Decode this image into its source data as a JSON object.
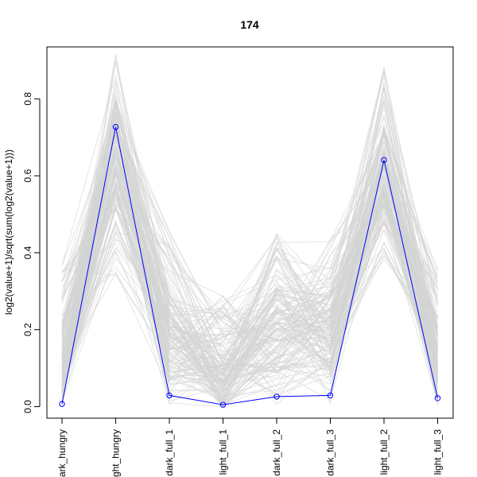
{
  "chart_data": {
    "type": "line",
    "title": "174",
    "ylabel": "log2(value+1)/sqrt(sum(log2(value+1)))",
    "xlabel": "",
    "categories": [
      "dark_hungry",
      "light_hungry",
      "dark_full_1",
      "light_full_1",
      "dark_full_2",
      "dark_full_3",
      "light_full_2",
      "light_full_3"
    ],
    "category_labels_visible": [
      "ark_hungry",
      "ight_hungry",
      "dark_full_1",
      "light_full_1",
      "dark_full_2",
      "dark_full_3",
      "light_full_2",
      "light_full_3"
    ],
    "ylim": [
      -0.03,
      0.935
    ],
    "yticks": [
      0.0,
      0.2,
      0.4,
      0.6,
      0.8
    ],
    "ytick_labels": [
      "0.0",
      "0.2",
      "0.4",
      "0.6",
      "0.8"
    ],
    "grid": false,
    "legend": "none",
    "highlight_series": {
      "values": [
        0.007,
        0.727,
        0.029,
        0.005,
        0.026,
        0.029,
        0.641,
        0.022
      ],
      "color": "#0000ff"
    },
    "background_series": {
      "color": "#d3d3d3",
      "count": 160,
      "ranges": [
        [
          0.0,
          0.37
        ],
        [
          0.34,
          0.92
        ],
        [
          0.0,
          0.46
        ],
        [
          0.0,
          0.29
        ],
        [
          0.0,
          0.46
        ],
        [
          0.0,
          0.46
        ],
        [
          0.38,
          0.89
        ],
        [
          0.0,
          0.37
        ]
      ],
      "typical": [
        0.12,
        0.66,
        0.18,
        0.06,
        0.2,
        0.2,
        0.6,
        0.14
      ]
    }
  }
}
